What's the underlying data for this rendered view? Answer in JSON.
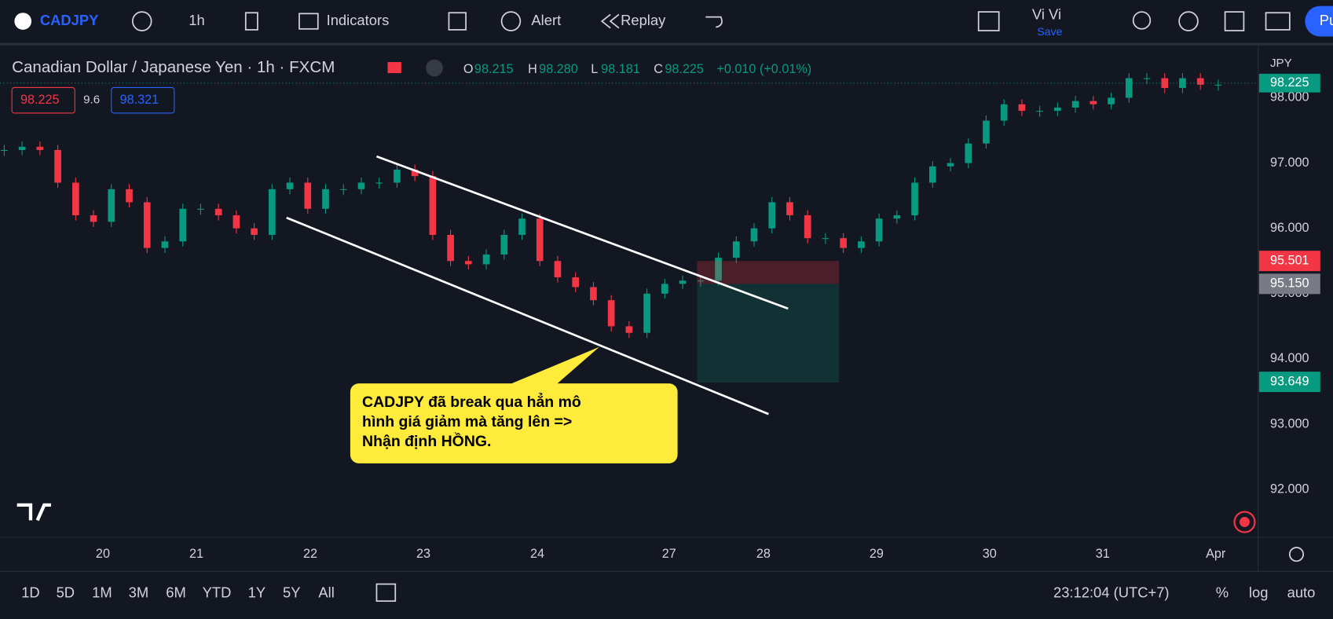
{
  "toolbar": {
    "symbol": "CADJPY",
    "interval": "1h",
    "indicators": "Indicators",
    "alert": "Alert",
    "replay": "Replay",
    "user": "Vi Vi",
    "save": "Save",
    "publish": "Pu"
  },
  "legend": {
    "title": "Canadian Dollar / Japanese Yen · 1h · FXCM",
    "o_label": "O",
    "open": "98.215",
    "h_label": "H",
    "high": "98.280",
    "l_label": "L",
    "low": "98.181",
    "c_label": "C",
    "close": "98.225",
    "change": "+0.010 (+0.01%)"
  },
  "quote": {
    "bid": "98.225",
    "spread": "9.6",
    "ask": "98.321"
  },
  "chart": {
    "up_color": "#089981",
    "down_color": "#f23645",
    "closes": [
      97.2,
      97.25,
      97.2,
      96.7,
      96.2,
      96.1,
      96.6,
      96.4,
      95.7,
      95.8,
      96.3,
      96.3,
      96.2,
      96.0,
      95.9,
      96.6,
      96.7,
      96.3,
      96.6,
      96.6,
      96.7,
      96.7,
      96.9,
      96.8,
      95.9,
      95.5,
      95.45,
      95.6,
      95.9,
      96.15,
      95.5,
      95.25,
      95.1,
      94.9,
      94.5,
      94.4,
      95.0,
      95.15,
      95.2,
      95.2,
      95.55,
      95.8,
      96.0,
      96.4,
      96.2,
      95.85,
      95.85,
      95.7,
      95.8,
      96.15,
      96.2,
      96.7,
      96.95,
      97.0,
      97.3,
      97.65,
      97.9,
      97.8,
      97.8,
      97.85,
      97.95,
      97.9,
      98.0,
      98.3,
      98.3,
      98.15,
      98.3,
      98.2,
      98.2
    ]
  },
  "price_axis": {
    "currency": "JPY",
    "ticks": [
      {
        "value": 98,
        "label": "98.000"
      },
      {
        "value": 97,
        "label": "97.000"
      },
      {
        "value": 96,
        "label": "96.000"
      },
      {
        "value": 95,
        "label": "95.000"
      },
      {
        "value": 94,
        "label": "94.000"
      },
      {
        "value": 93,
        "label": "93.000"
      },
      {
        "value": 92,
        "label": "92.000"
      }
    ],
    "current": {
      "value": 98.225,
      "label": "98.225"
    },
    "tags": [
      {
        "value": 95.501,
        "label": "95.501",
        "color": "#f23645"
      },
      {
        "value": 95.15,
        "label": "95.150",
        "color": "#787b86"
      },
      {
        "value": 93.649,
        "label": "93.649",
        "color": "#089981"
      }
    ]
  },
  "time_axis": [
    "20",
    "21",
    "22",
    "23",
    "24",
    "27",
    "28",
    "29",
    "30",
    "31",
    "Apr"
  ],
  "callout": [
    "CADJPY đã break qua hẳn mô",
    "hình giá giảm mà tăng lên =>",
    "Nhận định HỒNG."
  ],
  "bottom_bar": {
    "ranges": [
      "1D",
      "5D",
      "1M",
      "3M",
      "6M",
      "YTD",
      "1Y",
      "5Y",
      "All"
    ],
    "clock": "23:12:04 (UTC+7)",
    "percent": "%",
    "log": "log",
    "auto": "auto"
  }
}
